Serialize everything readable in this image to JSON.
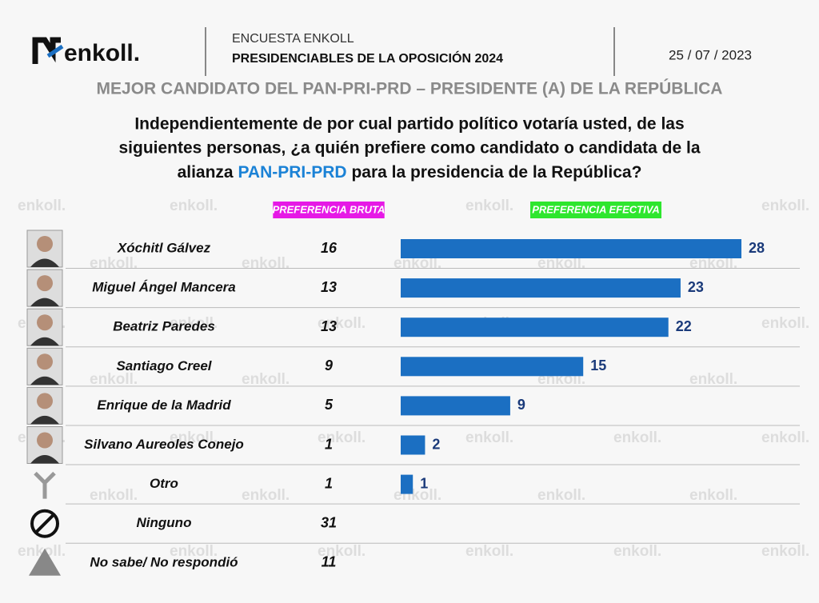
{
  "header": {
    "logo": "enkoll.",
    "survey": "ENCUESTA ENKOLL",
    "title": "PRESIDENCIABLES DE LA OPOSICIÓN 2024",
    "date": "25 / 07 / 2023"
  },
  "chart_data": {
    "type": "bar",
    "orientation": "horizontal",
    "title": "MEJOR CANDIDATO DEL PAN-PRI-PRD – PRESIDENTE (A) DE LA REPÚBLICA",
    "question": [
      "Independientemente de por cual partido político votaría usted, de las",
      "siguientes personas, ¿a quién prefiere como candidato o candidata de la",
      "alianza",
      "PAN-PRI-PRD",
      "para la presidencia de la República?"
    ],
    "categories": [
      "Xóchitl Gálvez",
      "Miguel Ángel Mancera",
      "Beatriz Paredes",
      "Santiago Creel",
      "Enrique de la Madrid",
      "Silvano Aureoles Conejo",
      "Otro",
      "Ninguno",
      "No sabe/ No respondió"
    ],
    "series": [
      {
        "name": "PREFERENCIA BRUTA",
        "display": "text",
        "label_color": "#e619e6",
        "values": [
          16,
          13,
          13,
          9,
          5,
          1,
          1,
          31,
          11
        ]
      },
      {
        "name": "PREFERENCIA EFECTIVA",
        "display": "bars",
        "label_color": "#2ee62e",
        "color": "#1b6fc2",
        "values": [
          28,
          23,
          22,
          15,
          9,
          2,
          1,
          null,
          null
        ]
      }
    ]
  }
}
